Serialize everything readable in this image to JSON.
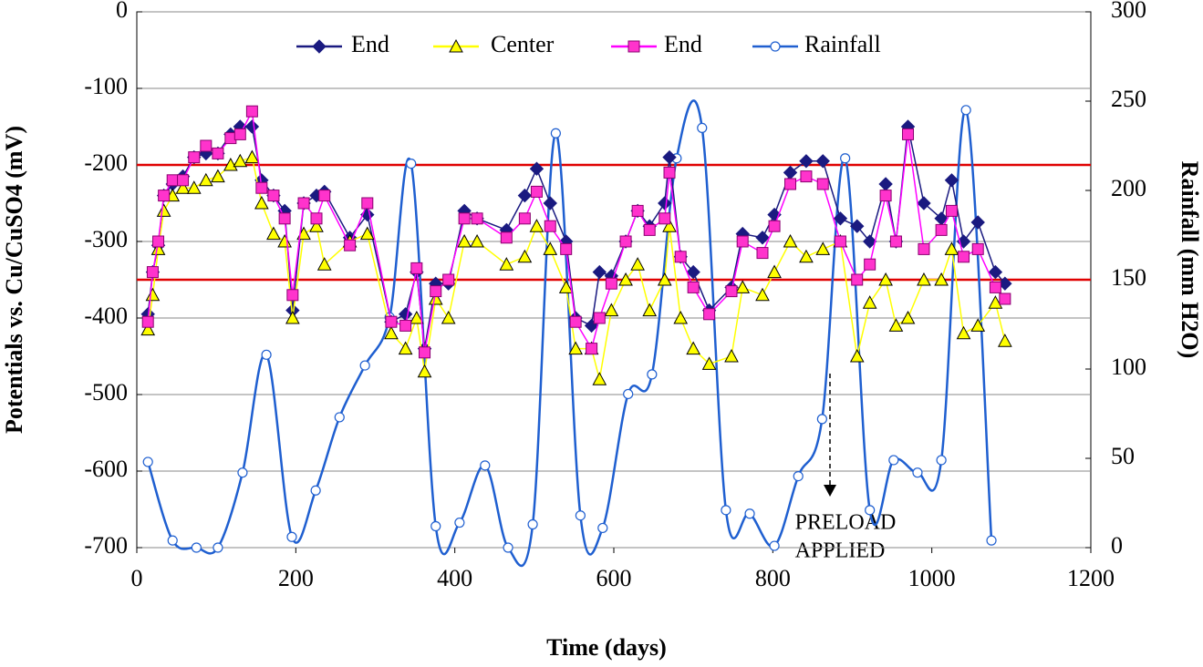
{
  "chart_data": {
    "type": "line",
    "title_y": "Potentials vs. Cu/CuSO4 (mV)",
    "title_y2": "Rainfall (mm H2O)",
    "title_x": "Time (days)",
    "annotation": [
      "PRELOAD",
      "APPLIED"
    ],
    "xlim": [
      0,
      1200
    ],
    "xticks": [
      0,
      200,
      400,
      600,
      800,
      1000,
      1200
    ],
    "ylim": [
      -700,
      0
    ],
    "yticks": [
      0,
      -100,
      -200,
      -300,
      -400,
      -500,
      -600,
      -700
    ],
    "y2lim": [
      0,
      300
    ],
    "y2ticks": [
      0,
      50,
      100,
      150,
      200,
      250,
      300
    ],
    "grid": true,
    "legend": "top",
    "reference_lines": [
      {
        "value": -200,
        "color": "#e00000"
      },
      {
        "value": -350,
        "color": "#e00000"
      }
    ],
    "x": [
      14,
      20,
      27,
      34,
      45,
      58,
      72,
      87,
      102,
      118,
      130,
      145,
      157,
      172,
      186,
      196,
      210,
      226,
      236,
      268,
      290,
      320,
      338,
      352,
      362,
      376,
      392,
      412,
      428,
      465,
      488,
      503,
      520,
      540,
      552,
      572,
      582,
      597,
      615,
      630,
      645,
      664,
      670,
      684,
      700,
      720,
      748,
      762,
      787,
      802,
      822,
      842,
      863,
      885,
      906,
      922,
      942,
      955,
      970,
      990,
      1012,
      1025,
      1040,
      1058,
      1080,
      1092
    ],
    "series": [
      {
        "name": "End",
        "color": "#1a1a80",
        "marker": "diamond",
        "fill": "#1a1a80",
        "smooth": false,
        "values": [
          -395,
          -340,
          -305,
          -240,
          -225,
          -215,
          -190,
          -185,
          -185,
          -160,
          -150,
          -150,
          -220,
          -240,
          -260,
          -390,
          -250,
          -240,
          -235,
          -295,
          -265,
          -405,
          -395,
          -340,
          -440,
          -355,
          -355,
          -260,
          -270,
          -285,
          -240,
          -205,
          -250,
          -300,
          -400,
          -410,
          -340,
          -345,
          -300,
          -260,
          -280,
          -250,
          -190,
          -320,
          -340,
          -390,
          -360,
          -290,
          -295,
          -265,
          -210,
          -195,
          -195,
          -270,
          -280,
          -300,
          -225,
          -300,
          -150,
          -250,
          -270,
          -220,
          -300,
          -275,
          -340,
          -355
        ]
      },
      {
        "name": "Center",
        "color": "#ffff00",
        "marker": "triangle",
        "fill": "#ffff00",
        "smooth": false,
        "values": [
          -415,
          -370,
          -310,
          -260,
          -240,
          -230,
          -230,
          -220,
          -215,
          -200,
          -195,
          -190,
          -250,
          -290,
          -300,
          -400,
          -290,
          -280,
          -330,
          -300,
          -290,
          -420,
          -440,
          -400,
          -470,
          -375,
          -400,
          -300,
          -300,
          -330,
          -320,
          -280,
          -310,
          -360,
          -440,
          -440,
          -480,
          -390,
          -350,
          -330,
          -390,
          -350,
          -280,
          -400,
          -440,
          -460,
          -450,
          -360,
          -370,
          -340,
          -300,
          -320,
          -310,
          -300,
          -450,
          -380,
          -350,
          -410,
          -400,
          -350,
          -350,
          -310,
          -420,
          -410,
          -380,
          -430
        ]
      },
      {
        "name": "End",
        "color": "#ff00ff",
        "marker": "square",
        "fill": "#ff33cc",
        "smooth": false,
        "values": [
          -405,
          -340,
          -300,
          -240,
          -220,
          -220,
          -190,
          -175,
          -185,
          -165,
          -160,
          -130,
          -230,
          -240,
          -270,
          -370,
          -250,
          -270,
          -240,
          -305,
          -250,
          -405,
          -410,
          -335,
          -445,
          -365,
          -350,
          -270,
          -270,
          -295,
          -270,
          -235,
          -280,
          -310,
          -405,
          -440,
          -400,
          -355,
          -300,
          -260,
          -285,
          -270,
          -210,
          -320,
          -360,
          -395,
          -365,
          -300,
          -315,
          -280,
          -225,
          -215,
          -225,
          -300,
          -350,
          -330,
          -240,
          -300,
          -160,
          -310,
          -285,
          -260,
          -320,
          -310,
          -360,
          -375
        ]
      },
      {
        "name": "Rainfall",
        "color": "#1f5fd0",
        "marker": "circle",
        "fill": "#ffffff",
        "smooth": true,
        "axis": "y2",
        "x": [
          14,
          45,
          75,
          102,
          133,
          163,
          195,
          225,
          255,
          287,
          318,
          345,
          376,
          406,
          438,
          467,
          498,
          527,
          558,
          586,
          618,
          648,
          679,
          711,
          741,
          771,
          802,
          832,
          862,
          891,
          922,
          952,
          982,
          1012,
          1043,
          1075
        ],
        "values": [
          48,
          4,
          0,
          0,
          42,
          108,
          6,
          32,
          73,
          102,
          129,
          215,
          12,
          14,
          46,
          0,
          13,
          232,
          18,
          11,
          86,
          97,
          218,
          235,
          21,
          19,
          1,
          40,
          72,
          218,
          21,
          49,
          42,
          49,
          245,
          4
        ]
      }
    ]
  }
}
